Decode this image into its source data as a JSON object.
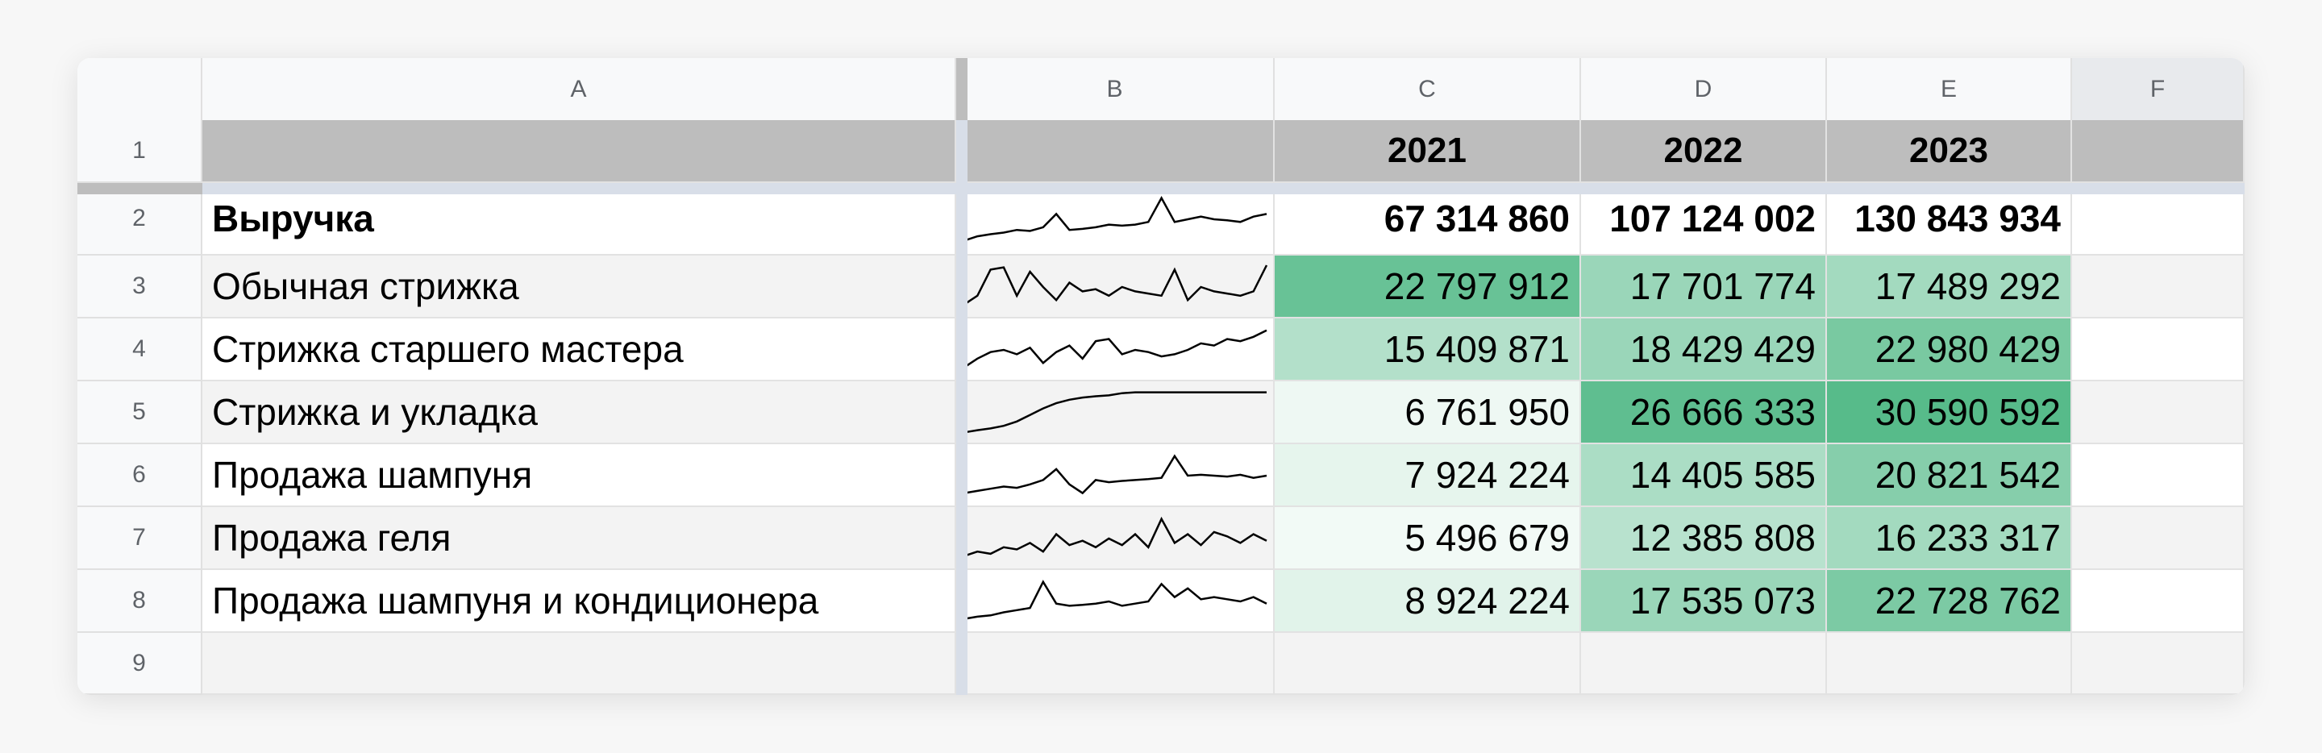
{
  "columns": [
    "A",
    "B",
    "C",
    "D",
    "E",
    "F"
  ],
  "row_numbers": [
    "1",
    "2",
    "3",
    "4",
    "5",
    "6",
    "7",
    "8",
    "9"
  ],
  "header_row": {
    "c": "2021",
    "d": "2022",
    "e": "2023"
  },
  "rows": [
    {
      "label": "Выручка",
      "c": "67 314 860",
      "d": "107 124 002",
      "e": "130 843 934",
      "c_level": 0,
      "d_level": 0,
      "e_level": 0,
      "spark": [
        0.1,
        0.18,
        0.22,
        0.25,
        0.3,
        0.28,
        0.35,
        0.6,
        0.3,
        0.32,
        0.35,
        0.4,
        0.38,
        0.4,
        0.45,
        0.9,
        0.45,
        0.5,
        0.55,
        0.5,
        0.48,
        0.45,
        0.55,
        0.6
      ]
    },
    {
      "label": "Обычная стрижка",
      "c": "22 797 912",
      "d": "17 701 774",
      "e": "17 489 292",
      "c_level": 0.9,
      "d_level": 0.6,
      "e_level": 0.55,
      "spark": [
        0.1,
        0.3,
        0.9,
        0.95,
        0.3,
        0.85,
        0.5,
        0.2,
        0.6,
        0.4,
        0.45,
        0.3,
        0.5,
        0.4,
        0.35,
        0.3,
        0.9,
        0.2,
        0.5,
        0.4,
        0.35,
        0.3,
        0.4,
        1.0
      ]
    },
    {
      "label": "Стрижка старшего мастера",
      "c": "15 409 871",
      "d": "18 429 429",
      "e": "22 980 429",
      "c_level": 0.45,
      "d_level": 0.6,
      "e_level": 0.8,
      "spark": [
        0.1,
        0.3,
        0.45,
        0.5,
        0.4,
        0.55,
        0.2,
        0.45,
        0.6,
        0.3,
        0.7,
        0.75,
        0.4,
        0.5,
        0.45,
        0.35,
        0.4,
        0.5,
        0.65,
        0.6,
        0.75,
        0.7,
        0.8,
        0.95
      ]
    },
    {
      "label": "Стрижка и укладка",
      "c": "6 761 950",
      "d": "26 666 333",
      "e": "30 590 592",
      "c_level": 0.1,
      "d_level": 0.95,
      "e_level": 1.0,
      "spark": [
        0.05,
        0.1,
        0.14,
        0.2,
        0.3,
        0.45,
        0.6,
        0.72,
        0.8,
        0.85,
        0.88,
        0.9,
        0.95,
        0.97,
        0.97,
        0.97,
        0.97,
        0.97,
        0.97,
        0.97,
        0.97,
        0.97,
        0.97,
        0.97
      ]
    },
    {
      "label": "Продажа шампуня",
      "c": "7 924 224",
      "d": "14 405 585",
      "e": "20 821 542",
      "c_level": 0.15,
      "d_level": 0.5,
      "e_level": 0.72,
      "spark": [
        0.1,
        0.15,
        0.2,
        0.25,
        0.22,
        0.3,
        0.4,
        0.65,
        0.3,
        0.1,
        0.4,
        0.35,
        0.38,
        0.4,
        0.42,
        0.45,
        0.95,
        0.5,
        0.52,
        0.5,
        0.48,
        0.52,
        0.45,
        0.5
      ]
    },
    {
      "label": "Продажа геля",
      "c": "5 496 679",
      "d": "12 385 808",
      "e": "16 233 317",
      "c_level": 0.08,
      "d_level": 0.42,
      "e_level": 0.55,
      "spark": [
        0.1,
        0.2,
        0.15,
        0.3,
        0.25,
        0.4,
        0.2,
        0.6,
        0.35,
        0.45,
        0.3,
        0.5,
        0.35,
        0.6,
        0.3,
        0.95,
        0.4,
        0.6,
        0.35,
        0.65,
        0.55,
        0.4,
        0.6,
        0.45
      ]
    },
    {
      "label": "Продажа шампуня и кондиционера",
      "c": "8 924 224",
      "d": "17 535 073",
      "e": "22 728 762",
      "c_level": 0.18,
      "d_level": 0.6,
      "e_level": 0.78,
      "spark": [
        0.1,
        0.15,
        0.18,
        0.25,
        0.3,
        0.35,
        0.95,
        0.45,
        0.4,
        0.42,
        0.45,
        0.5,
        0.4,
        0.45,
        0.5,
        0.9,
        0.6,
        0.8,
        0.55,
        0.6,
        0.55,
        0.5,
        0.6,
        0.45
      ]
    }
  ],
  "colors": {
    "scale_low": "#ffffff",
    "scale_high": "#57bb8a",
    "header_fill": "#bdbdbd",
    "sparkline": "#000000"
  }
}
